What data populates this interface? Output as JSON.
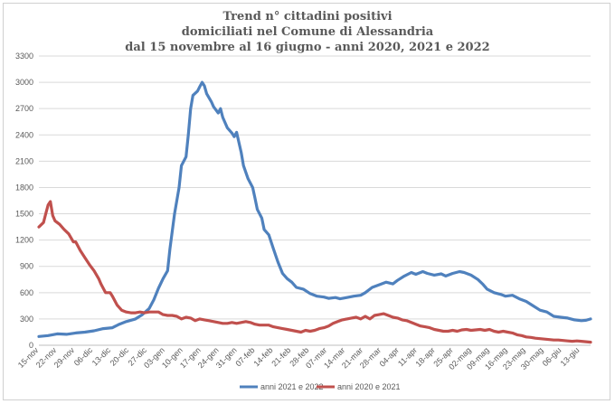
{
  "chart_data": {
    "type": "line",
    "title_lines": [
      "Trend n° cittadini positivi",
      "domiciliati nel Comune di Alessandria",
      "dal 15 novembre al 16 giugno - anni 2020, 2021 e 2022"
    ],
    "xlabel": "",
    "ylabel": "",
    "ylim": [
      0,
      3300
    ],
    "yticks": [
      0,
      300,
      600,
      900,
      1200,
      1500,
      1800,
      2100,
      2400,
      2700,
      3000,
      3300
    ],
    "x_tick_labels": [
      "15-nov",
      "22-nov",
      "29-nov",
      "06-dic",
      "13-dic",
      "20-dic",
      "27-dic",
      "03-gen",
      "10-gen",
      "17-gen",
      "24-gen",
      "31-gen",
      "07-feb",
      "14-feb",
      "21-feb",
      "28-feb",
      "07-mar",
      "14-mar",
      "21-mar",
      "28-mar",
      "04-apr",
      "11-apr",
      "18-apr",
      "25-apr",
      "02-mag",
      "09-mag",
      "16-mag",
      "23-mag",
      "30-mag",
      "06-giu",
      "13-giu"
    ],
    "x_days_range": [
      0,
      213
    ],
    "grid": true,
    "legend_position": "bottom",
    "series": [
      {
        "name": "anni 2021 e 2022",
        "color": "#4f81bd",
        "points": [
          [
            0,
            100
          ],
          [
            4,
            110
          ],
          [
            8,
            130
          ],
          [
            12,
            125
          ],
          [
            16,
            140
          ],
          [
            20,
            150
          ],
          [
            24,
            165
          ],
          [
            28,
            190
          ],
          [
            32,
            200
          ],
          [
            35,
            240
          ],
          [
            38,
            270
          ],
          [
            42,
            300
          ],
          [
            45,
            350
          ],
          [
            48,
            420
          ],
          [
            50,
            520
          ],
          [
            52,
            650
          ],
          [
            54,
            760
          ],
          [
            56,
            850
          ],
          [
            57,
            1100
          ],
          [
            59,
            1500
          ],
          [
            61,
            1800
          ],
          [
            62,
            2050
          ],
          [
            64,
            2150
          ],
          [
            65,
            2400
          ],
          [
            66,
            2700
          ],
          [
            67,
            2850
          ],
          [
            69,
            2900
          ],
          [
            70,
            2950
          ],
          [
            71,
            3000
          ],
          [
            72,
            2960
          ],
          [
            73,
            2870
          ],
          [
            75,
            2780
          ],
          [
            76,
            2720
          ],
          [
            78,
            2650
          ],
          [
            79,
            2700
          ],
          [
            80,
            2600
          ],
          [
            82,
            2480
          ],
          [
            84,
            2420
          ],
          [
            85,
            2380
          ],
          [
            86,
            2430
          ],
          [
            88,
            2200
          ],
          [
            89,
            2050
          ],
          [
            91,
            1900
          ],
          [
            93,
            1800
          ],
          [
            94,
            1680
          ],
          [
            95,
            1550
          ],
          [
            97,
            1450
          ],
          [
            98,
            1320
          ],
          [
            100,
            1260
          ],
          [
            102,
            1100
          ],
          [
            104,
            950
          ],
          [
            106,
            820
          ],
          [
            108,
            760
          ],
          [
            110,
            720
          ],
          [
            112,
            660
          ],
          [
            115,
            640
          ],
          [
            118,
            590
          ],
          [
            121,
            560
          ],
          [
            124,
            550
          ],
          [
            126,
            535
          ],
          [
            129,
            545
          ],
          [
            131,
            530
          ],
          [
            134,
            545
          ],
          [
            137,
            560
          ],
          [
            140,
            570
          ],
          [
            142,
            600
          ],
          [
            145,
            660
          ],
          [
            148,
            690
          ],
          [
            151,
            720
          ],
          [
            154,
            700
          ],
          [
            156,
            740
          ],
          [
            159,
            790
          ],
          [
            162,
            830
          ],
          [
            164,
            810
          ],
          [
            167,
            840
          ],
          [
            169,
            820
          ],
          [
            172,
            800
          ],
          [
            175,
            815
          ],
          [
            177,
            790
          ],
          [
            180,
            820
          ],
          [
            183,
            840
          ],
          [
            185,
            830
          ],
          [
            188,
            800
          ],
          [
            191,
            750
          ],
          [
            193,
            700
          ],
          [
            195,
            640
          ],
          [
            198,
            600
          ],
          [
            201,
            580
          ],
          [
            203,
            560
          ],
          [
            206,
            570
          ],
          [
            209,
            530
          ],
          [
            212,
            500
          ],
          [
            215,
            450
          ],
          [
            218,
            400
          ],
          [
            221,
            380
          ],
          [
            224,
            330
          ],
          [
            227,
            320
          ],
          [
            230,
            310
          ],
          [
            233,
            290
          ],
          [
            236,
            280
          ],
          [
            238,
            285
          ],
          [
            240,
            300
          ]
        ]
      },
      {
        "name": "anni 2020 e 2021",
        "color": "#c0504d",
        "points": [
          [
            0,
            1350
          ],
          [
            2,
            1400
          ],
          [
            3,
            1500
          ],
          [
            4,
            1600
          ],
          [
            5,
            1640
          ],
          [
            6,
            1480
          ],
          [
            7,
            1420
          ],
          [
            9,
            1380
          ],
          [
            11,
            1320
          ],
          [
            13,
            1270
          ],
          [
            15,
            1180
          ],
          [
            16,
            1180
          ],
          [
            18,
            1080
          ],
          [
            20,
            1000
          ],
          [
            22,
            920
          ],
          [
            24,
            850
          ],
          [
            26,
            760
          ],
          [
            27,
            700
          ],
          [
            29,
            600
          ],
          [
            31,
            600
          ],
          [
            32,
            560
          ],
          [
            34,
            460
          ],
          [
            36,
            400
          ],
          [
            38,
            380
          ],
          [
            40,
            370
          ],
          [
            42,
            370
          ],
          [
            44,
            380
          ],
          [
            46,
            370
          ],
          [
            48,
            380
          ],
          [
            50,
            380
          ],
          [
            52,
            380
          ],
          [
            54,
            350
          ],
          [
            56,
            340
          ],
          [
            58,
            340
          ],
          [
            60,
            330
          ],
          [
            62,
            300
          ],
          [
            64,
            320
          ],
          [
            66,
            310
          ],
          [
            68,
            280
          ],
          [
            70,
            300
          ],
          [
            72,
            290
          ],
          [
            74,
            280
          ],
          [
            76,
            270
          ],
          [
            78,
            260
          ],
          [
            80,
            250
          ],
          [
            82,
            250
          ],
          [
            84,
            260
          ],
          [
            86,
            250
          ],
          [
            88,
            260
          ],
          [
            90,
            270
          ],
          [
            92,
            260
          ],
          [
            94,
            240
          ],
          [
            96,
            230
          ],
          [
            98,
            230
          ],
          [
            100,
            230
          ],
          [
            102,
            210
          ],
          [
            104,
            200
          ],
          [
            106,
            190
          ],
          [
            108,
            180
          ],
          [
            110,
            170
          ],
          [
            112,
            160
          ],
          [
            114,
            150
          ],
          [
            116,
            170
          ],
          [
            118,
            160
          ],
          [
            120,
            170
          ],
          [
            122,
            190
          ],
          [
            124,
            200
          ],
          [
            126,
            220
          ],
          [
            128,
            250
          ],
          [
            130,
            270
          ],
          [
            132,
            290
          ],
          [
            134,
            300
          ],
          [
            136,
            310
          ],
          [
            138,
            320
          ],
          [
            140,
            300
          ],
          [
            142,
            330
          ],
          [
            144,
            300
          ],
          [
            146,
            340
          ],
          [
            148,
            350
          ],
          [
            150,
            360
          ],
          [
            152,
            340
          ],
          [
            154,
            320
          ],
          [
            156,
            310
          ],
          [
            158,
            290
          ],
          [
            160,
            280
          ],
          [
            162,
            260
          ],
          [
            164,
            240
          ],
          [
            166,
            220
          ],
          [
            168,
            210
          ],
          [
            170,
            200
          ],
          [
            172,
            180
          ],
          [
            174,
            170
          ],
          [
            176,
            160
          ],
          [
            178,
            160
          ],
          [
            180,
            170
          ],
          [
            182,
            160
          ],
          [
            184,
            175
          ],
          [
            186,
            180
          ],
          [
            188,
            170
          ],
          [
            190,
            175
          ],
          [
            192,
            180
          ],
          [
            194,
            170
          ],
          [
            196,
            180
          ],
          [
            198,
            160
          ],
          [
            200,
            150
          ],
          [
            202,
            160
          ],
          [
            204,
            150
          ],
          [
            206,
            140
          ],
          [
            208,
            120
          ],
          [
            210,
            110
          ],
          [
            212,
            95
          ],
          [
            214,
            90
          ],
          [
            216,
            80
          ],
          [
            218,
            75
          ],
          [
            220,
            70
          ],
          [
            222,
            65
          ],
          [
            224,
            60
          ],
          [
            226,
            60
          ],
          [
            228,
            55
          ],
          [
            230,
            50
          ],
          [
            232,
            45
          ],
          [
            234,
            50
          ],
          [
            236,
            45
          ],
          [
            238,
            40
          ],
          [
            240,
            35
          ]
        ]
      }
    ]
  }
}
